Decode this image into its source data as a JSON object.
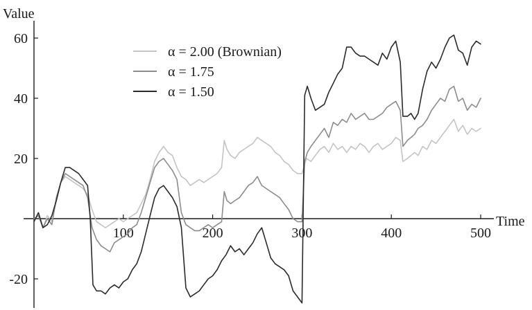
{
  "chart_data": {
    "type": "line",
    "title": "",
    "xlabel": "Time",
    "ylabel": "Value",
    "xlim": [
      0,
      500
    ],
    "ylim": [
      -30,
      65
    ],
    "x_ticks": [
      100,
      200,
      300,
      400,
      500
    ],
    "y_ticks": [
      60,
      40,
      20,
      -20
    ],
    "legend_position": "top-center",
    "grid": false,
    "series": [
      {
        "name": "α = 2.00 (Brownian)",
        "color": "#c4c4c4",
        "points": [
          [
            0,
            -1
          ],
          [
            5,
            2
          ],
          [
            10,
            -3
          ],
          [
            15,
            1
          ],
          [
            20,
            -1
          ],
          [
            25,
            6
          ],
          [
            30,
            12
          ],
          [
            35,
            14
          ],
          [
            40,
            13
          ],
          [
            45,
            12
          ],
          [
            50,
            11
          ],
          [
            55,
            10
          ],
          [
            60,
            8
          ],
          [
            65,
            3
          ],
          [
            70,
            -1
          ],
          [
            75,
            -2
          ],
          [
            80,
            -3
          ],
          [
            85,
            -2
          ],
          [
            90,
            -1
          ],
          [
            95,
            0
          ],
          [
            100,
            -1
          ],
          [
            105,
            0
          ],
          [
            110,
            1
          ],
          [
            115,
            2
          ],
          [
            120,
            5
          ],
          [
            125,
            8
          ],
          [
            130,
            13
          ],
          [
            135,
            19
          ],
          [
            140,
            22
          ],
          [
            145,
            24
          ],
          [
            150,
            22
          ],
          [
            155,
            21
          ],
          [
            160,
            17
          ],
          [
            165,
            14
          ],
          [
            170,
            13
          ],
          [
            175,
            11
          ],
          [
            180,
            12
          ],
          [
            185,
            13
          ],
          [
            190,
            12
          ],
          [
            195,
            13
          ],
          [
            200,
            14
          ],
          [
            205,
            15
          ],
          [
            210,
            17
          ],
          [
            213,
            26
          ],
          [
            216,
            23
          ],
          [
            220,
            21
          ],
          [
            225,
            20
          ],
          [
            230,
            22
          ],
          [
            235,
            23
          ],
          [
            240,
            24
          ],
          [
            245,
            25
          ],
          [
            250,
            27
          ],
          [
            255,
            26
          ],
          [
            260,
            25
          ],
          [
            265,
            24
          ],
          [
            270,
            22
          ],
          [
            275,
            21
          ],
          [
            280,
            19
          ],
          [
            285,
            18
          ],
          [
            290,
            16
          ],
          [
            295,
            15
          ],
          [
            300,
            15
          ],
          [
            305,
            20
          ],
          [
            310,
            19
          ],
          [
            315,
            21
          ],
          [
            320,
            23
          ],
          [
            325,
            24
          ],
          [
            330,
            22
          ],
          [
            335,
            25
          ],
          [
            340,
            23
          ],
          [
            345,
            24
          ],
          [
            350,
            22
          ],
          [
            355,
            24
          ],
          [
            360,
            23
          ],
          [
            365,
            25
          ],
          [
            370,
            24
          ],
          [
            375,
            22
          ],
          [
            380,
            24
          ],
          [
            385,
            25
          ],
          [
            390,
            23
          ],
          [
            395,
            24
          ],
          [
            400,
            25
          ],
          [
            405,
            27
          ],
          [
            410,
            26
          ],
          [
            413,
            19
          ],
          [
            418,
            20
          ],
          [
            422,
            21
          ],
          [
            426,
            22
          ],
          [
            430,
            21
          ],
          [
            435,
            24
          ],
          [
            440,
            23
          ],
          [
            445,
            26
          ],
          [
            450,
            25
          ],
          [
            455,
            27
          ],
          [
            460,
            29
          ],
          [
            465,
            31
          ],
          [
            470,
            33
          ],
          [
            475,
            29
          ],
          [
            480,
            31
          ],
          [
            485,
            28
          ],
          [
            490,
            30
          ],
          [
            495,
            29
          ],
          [
            500,
            30
          ]
        ]
      },
      {
        "name": "α = 1.75",
        "color": "#8c8c8c",
        "points": [
          [
            0,
            0
          ],
          [
            5,
            1
          ],
          [
            10,
            -3
          ],
          [
            15,
            0
          ],
          [
            20,
            -2
          ],
          [
            25,
            7
          ],
          [
            30,
            12
          ],
          [
            35,
            15
          ],
          [
            40,
            14
          ],
          [
            45,
            13
          ],
          [
            50,
            12
          ],
          [
            55,
            11
          ],
          [
            60,
            7
          ],
          [
            65,
            -3
          ],
          [
            70,
            -7
          ],
          [
            75,
            -9
          ],
          [
            80,
            -10
          ],
          [
            85,
            -11
          ],
          [
            90,
            -8
          ],
          [
            95,
            -7
          ],
          [
            100,
            -6
          ],
          [
            105,
            -5
          ],
          [
            110,
            -3
          ],
          [
            115,
            -2
          ],
          [
            120,
            2
          ],
          [
            125,
            7
          ],
          [
            130,
            12
          ],
          [
            135,
            17
          ],
          [
            140,
            19
          ],
          [
            145,
            20
          ],
          [
            150,
            18
          ],
          [
            155,
            16
          ],
          [
            160,
            13
          ],
          [
            165,
            2
          ],
          [
            170,
            -2
          ],
          [
            175,
            -3
          ],
          [
            180,
            -4
          ],
          [
            185,
            -4
          ],
          [
            190,
            -3
          ],
          [
            195,
            -2
          ],
          [
            200,
            -3
          ],
          [
            205,
            -2
          ],
          [
            210,
            -1
          ],
          [
            213,
            9
          ],
          [
            216,
            6
          ],
          [
            220,
            5
          ],
          [
            225,
            6
          ],
          [
            230,
            7
          ],
          [
            235,
            9
          ],
          [
            240,
            11
          ],
          [
            245,
            12
          ],
          [
            250,
            14
          ],
          [
            255,
            11
          ],
          [
            260,
            10
          ],
          [
            265,
            9
          ],
          [
            270,
            8
          ],
          [
            275,
            7
          ],
          [
            280,
            5
          ],
          [
            285,
            3
          ],
          [
            290,
            0
          ],
          [
            295,
            -1
          ],
          [
            300,
            -1
          ],
          [
            303,
            19
          ],
          [
            306,
            22
          ],
          [
            310,
            24
          ],
          [
            315,
            26
          ],
          [
            320,
            28
          ],
          [
            325,
            30
          ],
          [
            330,
            27
          ],
          [
            335,
            32
          ],
          [
            340,
            31
          ],
          [
            345,
            33
          ],
          [
            350,
            32
          ],
          [
            355,
            35
          ],
          [
            360,
            33
          ],
          [
            365,
            34
          ],
          [
            370,
            35
          ],
          [
            375,
            33
          ],
          [
            380,
            33
          ],
          [
            385,
            34
          ],
          [
            390,
            35
          ],
          [
            395,
            37
          ],
          [
            400,
            38
          ],
          [
            405,
            39
          ],
          [
            410,
            36
          ],
          [
            413,
            24
          ],
          [
            418,
            26
          ],
          [
            422,
            27
          ],
          [
            426,
            28
          ],
          [
            430,
            30
          ],
          [
            435,
            31
          ],
          [
            440,
            33
          ],
          [
            445,
            36
          ],
          [
            450,
            38
          ],
          [
            455,
            40
          ],
          [
            460,
            39
          ],
          [
            465,
            43
          ],
          [
            470,
            44
          ],
          [
            475,
            39
          ],
          [
            480,
            40
          ],
          [
            485,
            36
          ],
          [
            490,
            38
          ],
          [
            495,
            37
          ],
          [
            500,
            40
          ]
        ]
      },
      {
        "name": "α = 1.50",
        "color": "#2a2a2a",
        "points": [
          [
            0,
            -1
          ],
          [
            5,
            2
          ],
          [
            10,
            -3
          ],
          [
            15,
            -2
          ],
          [
            20,
            1
          ],
          [
            25,
            6
          ],
          [
            30,
            12
          ],
          [
            35,
            17
          ],
          [
            40,
            17
          ],
          [
            45,
            16
          ],
          [
            50,
            15
          ],
          [
            55,
            13
          ],
          [
            60,
            11
          ],
          [
            63,
            0
          ],
          [
            66,
            -22
          ],
          [
            70,
            -24
          ],
          [
            75,
            -24
          ],
          [
            80,
            -25
          ],
          [
            85,
            -23
          ],
          [
            90,
            -22
          ],
          [
            95,
            -23
          ],
          [
            100,
            -21
          ],
          [
            105,
            -20
          ],
          [
            110,
            -17
          ],
          [
            115,
            -15
          ],
          [
            120,
            -11
          ],
          [
            125,
            -5
          ],
          [
            130,
            1
          ],
          [
            135,
            7
          ],
          [
            140,
            10
          ],
          [
            145,
            11
          ],
          [
            150,
            9
          ],
          [
            155,
            7
          ],
          [
            160,
            4
          ],
          [
            165,
            -3
          ],
          [
            170,
            -23
          ],
          [
            175,
            -26
          ],
          [
            180,
            -25
          ],
          [
            185,
            -24
          ],
          [
            190,
            -22
          ],
          [
            195,
            -20
          ],
          [
            200,
            -19
          ],
          [
            205,
            -17
          ],
          [
            210,
            -14
          ],
          [
            215,
            -12
          ],
          [
            220,
            -9
          ],
          [
            225,
            -11
          ],
          [
            230,
            -10
          ],
          [
            235,
            -12
          ],
          [
            240,
            -10
          ],
          [
            245,
            -8
          ],
          [
            250,
            -5
          ],
          [
            255,
            -3
          ],
          [
            260,
            -8
          ],
          [
            265,
            -13
          ],
          [
            270,
            -15
          ],
          [
            275,
            -16
          ],
          [
            280,
            -17
          ],
          [
            285,
            -19
          ],
          [
            290,
            -24
          ],
          [
            295,
            -26
          ],
          [
            300,
            -28
          ],
          [
            303,
            41
          ],
          [
            306,
            44
          ],
          [
            310,
            40
          ],
          [
            315,
            36
          ],
          [
            320,
            37
          ],
          [
            325,
            38
          ],
          [
            330,
            42
          ],
          [
            335,
            45
          ],
          [
            340,
            48
          ],
          [
            345,
            50
          ],
          [
            350,
            57
          ],
          [
            355,
            57
          ],
          [
            360,
            55
          ],
          [
            365,
            54
          ],
          [
            370,
            54
          ],
          [
            375,
            53
          ],
          [
            380,
            52
          ],
          [
            385,
            51
          ],
          [
            390,
            55
          ],
          [
            395,
            53
          ],
          [
            400,
            57
          ],
          [
            405,
            59
          ],
          [
            410,
            52
          ],
          [
            413,
            34
          ],
          [
            418,
            34
          ],
          [
            422,
            35
          ],
          [
            426,
            33
          ],
          [
            430,
            35
          ],
          [
            435,
            43
          ],
          [
            440,
            49
          ],
          [
            445,
            52
          ],
          [
            450,
            50
          ],
          [
            455,
            53
          ],
          [
            460,
            57
          ],
          [
            465,
            60
          ],
          [
            470,
            61
          ],
          [
            475,
            56
          ],
          [
            480,
            55
          ],
          [
            485,
            51
          ],
          [
            490,
            57
          ],
          [
            495,
            59
          ],
          [
            500,
            58
          ]
        ]
      }
    ]
  }
}
